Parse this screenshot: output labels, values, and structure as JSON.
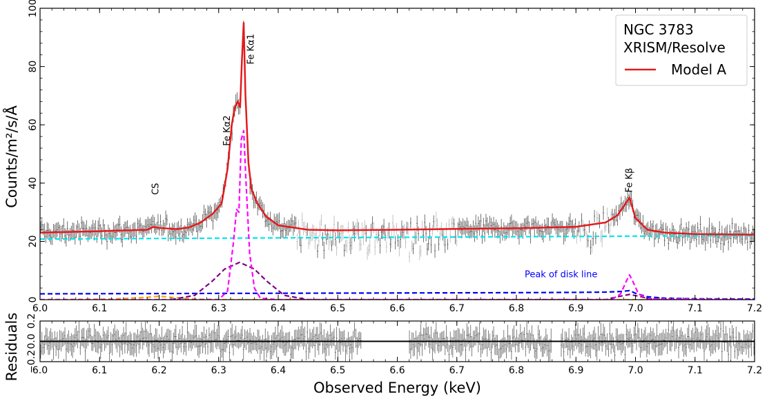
{
  "chart_data": {
    "type": "line",
    "title": "",
    "panels": [
      {
        "name": "spectrum",
        "xlabel": "",
        "ylabel": "Counts/m²/s/Å",
        "xlim": [
          6.0,
          7.2
        ],
        "ylim": [
          0,
          100
        ],
        "xticks": [
          6.0,
          6.1,
          6.2,
          6.3,
          6.4,
          6.5,
          6.6,
          6.7,
          6.8,
          6.9,
          7.0,
          7.1,
          7.2
        ],
        "xtick_labels": [
          "6.0",
          "6.1",
          "6.2",
          "6.3",
          "6.4",
          "6.5",
          "6.6",
          "6.7",
          "6.8",
          "6.9",
          "7.0",
          "7.1",
          "7.2"
        ],
        "yticks": [
          0,
          20,
          40,
          60,
          80,
          100
        ],
        "ytick_labels": [
          "0",
          "20",
          "40",
          "60",
          "80",
          "100"
        ],
        "legend": {
          "position": "top-right",
          "title_lines": [
            "NGC 3783",
            "XRISM/Resolve"
          ],
          "entries": [
            {
              "label": "Model A",
              "color": "#e31a1c"
            }
          ]
        },
        "annotations": [
          {
            "text": "CS",
            "x": 6.195,
            "y": 38,
            "rotation": -90
          },
          {
            "text": "Fe Kα2",
            "x": 6.315,
            "y": 58,
            "rotation": -90
          },
          {
            "text": "Fe Kα1",
            "x": 6.355,
            "y": 86,
            "rotation": -90
          },
          {
            "text": "Fe Kβ",
            "x": 6.99,
            "y": 41,
            "rotation": -90
          },
          {
            "text": "Peak of disk line",
            "x": 6.875,
            "y": 8.5,
            "rotation": 0,
            "color": "#0000ff"
          }
        ],
        "series": [
          {
            "name": "Model A",
            "color": "#e31a1c",
            "style": "solid",
            "x": [
              6.0,
              6.1,
              6.18,
              6.19,
              6.2,
              6.23,
              6.25,
              6.27,
              6.29,
              6.305,
              6.315,
              6.322,
              6.327,
              6.332,
              6.336,
              6.339,
              6.342,
              6.345,
              6.35,
              6.355,
              6.365,
              6.38,
              6.4,
              6.45,
              6.5,
              6.6,
              6.7,
              6.8,
              6.9,
              6.95,
              6.97,
              6.98,
              6.99,
              7.0,
              7.01,
              7.02,
              7.05,
              7.1,
              7.2
            ],
            "values": [
              23.0,
              23.5,
              24.0,
              25.0,
              24.6,
              24.2,
              24.8,
              26.5,
              29.5,
              33.0,
              45.0,
              60.0,
              66.0,
              68.0,
              66.0,
              82.0,
              95.0,
              70.0,
              47.0,
              38.0,
              33.0,
              28.5,
              25.5,
              24.0,
              23.8,
              24.0,
              24.3,
              24.5,
              25.0,
              26.5,
              29.0,
              32.0,
              35.0,
              28.0,
              26.0,
              24.0,
              23.0,
              22.5,
              22.3
            ]
          },
          {
            "name": "Continuum",
            "color": "#00e5ee",
            "style": "dashed",
            "x": [
              6.0,
              6.4,
              6.8,
              7.2
            ],
            "values": [
              20.8,
              21.2,
              21.6,
              22.0
            ]
          },
          {
            "name": "Narrow Fe K lines",
            "color": "#ff00ff",
            "style": "dashed",
            "x": [
              6.0,
              6.3,
              6.315,
              6.325,
              6.33,
              6.334,
              6.338,
              6.342,
              6.346,
              6.352,
              6.36,
              6.37,
              6.4,
              6.96,
              6.975,
              6.985,
              6.99,
              6.995,
              7.005,
              7.02,
              7.2
            ],
            "values": [
              0.0,
              0.0,
              3.0,
              20.0,
              31.0,
              30.0,
              55.0,
              58.0,
              40.0,
              16.0,
              4.0,
              0.5,
              0.0,
              0.0,
              2.0,
              6.5,
              8.5,
              6.5,
              2.0,
              0.3,
              0.0
            ]
          },
          {
            "name": "Broad Gaussian",
            "color": "#800080",
            "style": "dashed",
            "x": [
              6.22,
              6.26,
              6.29,
              6.31,
              6.335,
              6.36,
              6.38,
              6.41,
              6.45,
              6.5,
              6.95,
              6.97,
              6.99,
              7.01,
              7.03,
              7.2
            ],
            "values": [
              0.0,
              1.5,
              6.5,
              10.5,
              12.8,
              10.5,
              6.5,
              1.5,
              0.0,
              0.0,
              0.0,
              1.0,
              1.8,
              1.0,
              0.0,
              0.0
            ]
          },
          {
            "name": "Disk line",
            "color": "#0000ee",
            "style": "dashed",
            "x": [
              6.0,
              6.2,
              6.4,
              6.6,
              6.8,
              6.9,
              6.95,
              6.975,
              6.99,
              7.0,
              7.02,
              7.05,
              7.1,
              7.2
            ],
            "values": [
              2.0,
              2.1,
              2.2,
              2.3,
              2.4,
              2.5,
              2.6,
              2.8,
              3.1,
              2.2,
              1.0,
              0.5,
              0.3,
              0.2
            ]
          },
          {
            "name": "Minor component",
            "color": "#ffa500",
            "style": "dashed",
            "x": [
              6.0,
              6.12,
              6.18,
              6.2,
              6.22,
              6.26,
              6.3,
              7.2
            ],
            "values": [
              0.0,
              0.2,
              0.8,
              1.2,
              0.8,
              0.2,
              0.0,
              0.0
            ]
          }
        ]
      },
      {
        "name": "residuals",
        "xlabel": "Observed Energy (keV)",
        "ylabel": "Residuals",
        "xlim": [
          6.0,
          7.2
        ],
        "ylim": [
          -0.2,
          0.2
        ],
        "xticks": [
          6.0,
          6.1,
          6.2,
          6.3,
          6.4,
          6.5,
          6.6,
          6.7,
          6.8,
          6.9,
          7.0,
          7.1,
          7.2
        ],
        "xtick_labels": [
          "6.0",
          "6.1",
          "6.2",
          "6.3",
          "6.4",
          "6.5",
          "6.6",
          "6.7",
          "6.8",
          "6.9",
          "7.0",
          "7.1",
          "7.2"
        ],
        "yticks": [
          -0.2,
          0.0,
          0.2
        ],
        "ytick_labels": [
          "−0.2",
          "0.0",
          "0.2"
        ],
        "series": [
          {
            "name": "Zero line",
            "color": "#000000",
            "style": "solid",
            "x": [
              6.0,
              7.2
            ],
            "values": [
              0.0,
              0.0
            ]
          }
        ]
      }
    ]
  }
}
